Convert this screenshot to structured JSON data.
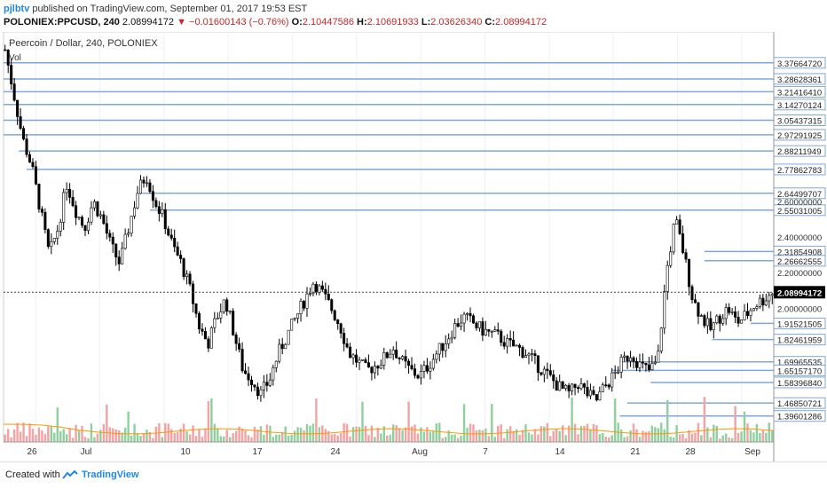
{
  "header": {
    "author": "pjlbtv",
    "published_text": "published on TradingView.com, September 01, 2017 19:53 EST",
    "symbol": "POLONIEX:PPCUSD, 240",
    "last": "2.08994172",
    "change": "▼ −0.01600143 (−0.76%)",
    "o_label": "O:",
    "o_value": "2.10447586",
    "h_label": "H:",
    "h_value": "2.10691933",
    "l_label": "L:",
    "l_value": "2.03626340",
    "c_label": "C:",
    "c_value": "2.08994172"
  },
  "legend": {
    "title": "Peercoin / Dollar, 240, POLONIEX",
    "vol": "Vol"
  },
  "footer": {
    "created_with": "Created with",
    "brand": "TradingView"
  },
  "colors": {
    "candle": "#000000",
    "hline": "#7fa8d8",
    "vol_up": "#8fd19e",
    "vol_down": "#f2a3a3",
    "vol_ma": "#ff9800",
    "last_price_bg": "#000000"
  },
  "chart_data": {
    "type": "candlestick",
    "title": "Peercoin / Dollar, 240, POLONIEX",
    "x_ticks": [
      "26",
      "Jul",
      "10",
      "17",
      "24",
      "Aug",
      "7",
      "14",
      "21",
      "28",
      "Sep"
    ],
    "y_ticks": [
      "2.40000000",
      "2.20000000",
      "2.00000000",
      "2.60000000"
    ],
    "ylim": [
      1.3,
      3.5
    ],
    "last_price": "2.08994172",
    "level_labels": [
      "3.37664720",
      "3.28628361",
      "3.21416410",
      "3.14270124",
      "3.05437315",
      "2.97291925",
      "2.88211949",
      "2.77862783",
      "2.64499707",
      "2.55031005",
      "2.31854908",
      "2.26662555",
      "1.91521505",
      "1.82461959",
      "1.69965535",
      "1.65157170",
      "1.58396840",
      "1.46850721",
      "1.39601286"
    ],
    "levels": [
      3.3766472,
      3.28628361,
      3.2141641,
      3.14270124,
      3.05437315,
      2.97291925,
      2.88211949,
      2.77862783,
      2.64499707,
      2.55031005,
      2.31854908,
      2.26662555,
      1.91521505,
      1.82461959,
      1.69965535,
      1.6515717,
      1.5839684,
      1.46850721,
      1.39601286
    ],
    "level_starts": [
      0.0,
      0.0,
      0.0,
      0.0,
      0.0,
      0.0,
      0.02,
      0.03,
      0.18,
      0.19,
      0.91,
      0.91,
      0.97,
      0.92,
      0.8,
      0.79,
      0.84,
      0.81,
      0.8
    ],
    "price_path": [
      3.45,
      3.2,
      2.95,
      2.8,
      2.55,
      2.3,
      2.45,
      2.7,
      2.55,
      2.45,
      2.6,
      2.5,
      2.35,
      2.25,
      2.45,
      2.65,
      2.75,
      2.6,
      2.5,
      2.35,
      2.25,
      2.1,
      1.9,
      1.8,
      1.95,
      2.05,
      1.85,
      1.65,
      1.6,
      1.52,
      1.6,
      1.75,
      1.85,
      1.95,
      2.05,
      2.15,
      2.08,
      2.0,
      1.9,
      1.75,
      1.7,
      1.65,
      1.68,
      1.72,
      1.78,
      1.7,
      1.65,
      1.62,
      1.68,
      1.75,
      1.82,
      1.9,
      1.95,
      1.92,
      1.88,
      1.86,
      1.84,
      1.8,
      1.78,
      1.75,
      1.7,
      1.65,
      1.6,
      1.55,
      1.52,
      1.58,
      1.52,
      1.48,
      1.56,
      1.62,
      1.7,
      1.75,
      1.68,
      1.65,
      1.7,
      2.2,
      2.5,
      2.3,
      2.05,
      1.95,
      1.88,
      1.95,
      2.0,
      1.92,
      1.96,
      2.02,
      2.05,
      2.09
    ]
  }
}
